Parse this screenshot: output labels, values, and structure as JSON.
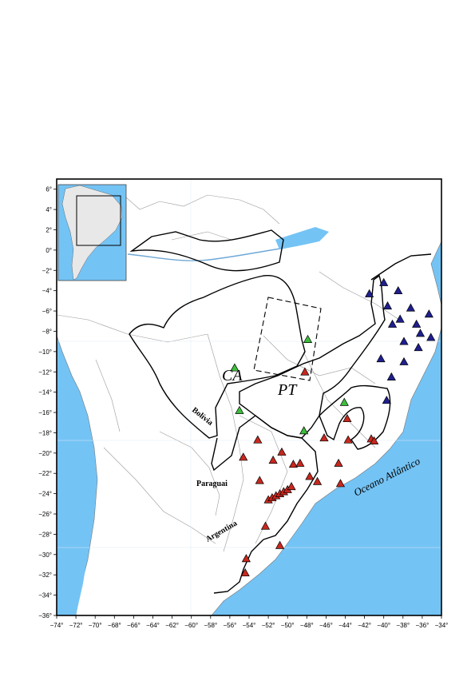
{
  "map": {
    "colors": {
      "ocean": "#74c3f5",
      "land": "#ffffff",
      "inset_land": "#e8e8e8",
      "craton_border": "#000000",
      "political_border": "#9a9a9a",
      "river": "#6fa8d6",
      "grid": "#dfe9f1"
    },
    "lon_ticks": [
      "−74°",
      "−72°",
      "−70°",
      "−68°",
      "−66°",
      "−64°",
      "−62°",
      "−60°",
      "−58°",
      "−56°",
      "−54°",
      "−52°",
      "−50°",
      "−48°",
      "−46°",
      "−44°",
      "−42°",
      "−40°",
      "−38°",
      "−36°",
      "−34°"
    ],
    "lat_ticks": [
      "6°",
      "4°",
      "2°",
      "0°",
      "−2°",
      "−4°",
      "−6°",
      "−8°",
      "−10°",
      "−12°",
      "−14°",
      "−16°",
      "−18°",
      "−20°",
      "−22°",
      "−24°",
      "−26°",
      "−28°",
      "−30°",
      "−32°",
      "−34°",
      "−36°"
    ],
    "region_labels": {
      "ca": "CA",
      "pt": "PT"
    },
    "place_labels": {
      "bolivia": "Bolívia",
      "paraguai": "Paraguai",
      "argentina": "Argentina",
      "ocean": "Oceano Atlântico"
    },
    "marker_legend": {
      "blue": {
        "color": "#1f1f8f",
        "shape": "triangle"
      },
      "green": {
        "color": "#3cbf3c",
        "shape": "triangle"
      },
      "red": {
        "color": "#c8281e",
        "shape": "triangle"
      }
    },
    "stations": {
      "blue": [
        {
          "lon": -41.5,
          "lat": -4.3
        },
        {
          "lon": -40.0,
          "lat": -3.2
        },
        {
          "lon": -38.5,
          "lat": -4.0
        },
        {
          "lon": -39.6,
          "lat": -5.5
        },
        {
          "lon": -37.2,
          "lat": -5.7
        },
        {
          "lon": -35.3,
          "lat": -6.3
        },
        {
          "lon": -38.3,
          "lat": -6.8
        },
        {
          "lon": -36.6,
          "lat": -7.3
        },
        {
          "lon": -39.1,
          "lat": -7.3
        },
        {
          "lon": -36.2,
          "lat": -8.2
        },
        {
          "lon": -35.1,
          "lat": -8.6
        },
        {
          "lon": -37.9,
          "lat": -9.0
        },
        {
          "lon": -36.4,
          "lat": -9.6
        },
        {
          "lon": -40.3,
          "lat": -10.7
        },
        {
          "lon": -37.9,
          "lat": -11.0
        },
        {
          "lon": -39.2,
          "lat": -12.5
        },
        {
          "lon": -39.7,
          "lat": -14.8
        }
      ],
      "green": [
        {
          "lon": -47.9,
          "lat": -8.8
        },
        {
          "lon": -55.5,
          "lat": -11.6
        },
        {
          "lon": -55.0,
          "lat": -15.8
        },
        {
          "lon": -48.3,
          "lat": -17.8
        },
        {
          "lon": -44.1,
          "lat": -15.0
        }
      ],
      "red": [
        {
          "lon": -48.2,
          "lat": -12.0
        },
        {
          "lon": -43.8,
          "lat": -16.6
        },
        {
          "lon": -53.1,
          "lat": -18.7
        },
        {
          "lon": -46.2,
          "lat": -18.5
        },
        {
          "lon": -43.7,
          "lat": -18.7
        },
        {
          "lon": -50.6,
          "lat": -19.9
        },
        {
          "lon": -51.5,
          "lat": -20.7
        },
        {
          "lon": -49.4,
          "lat": -21.1
        },
        {
          "lon": -48.7,
          "lat": -21.0
        },
        {
          "lon": -54.6,
          "lat": -20.4
        },
        {
          "lon": -44.7,
          "lat": -21.0
        },
        {
          "lon": -41.3,
          "lat": -18.6
        },
        {
          "lon": -41.0,
          "lat": -18.8
        },
        {
          "lon": -47.7,
          "lat": -22.3
        },
        {
          "lon": -52.9,
          "lat": -22.7
        },
        {
          "lon": -46.9,
          "lat": -22.8
        },
        {
          "lon": -44.5,
          "lat": -23.0
        },
        {
          "lon": -52.0,
          "lat": -24.6
        },
        {
          "lon": -51.6,
          "lat": -24.4
        },
        {
          "lon": -51.2,
          "lat": -24.2
        },
        {
          "lon": -50.8,
          "lat": -24.0
        },
        {
          "lon": -50.4,
          "lat": -23.8
        },
        {
          "lon": -50.0,
          "lat": -23.6
        },
        {
          "lon": -49.6,
          "lat": -23.3
        },
        {
          "lon": -52.3,
          "lat": -27.2
        },
        {
          "lon": -50.8,
          "lat": -29.1
        },
        {
          "lon": -54.3,
          "lat": -30.4
        },
        {
          "lon": -54.4,
          "lat": -31.8
        }
      ]
    }
  }
}
